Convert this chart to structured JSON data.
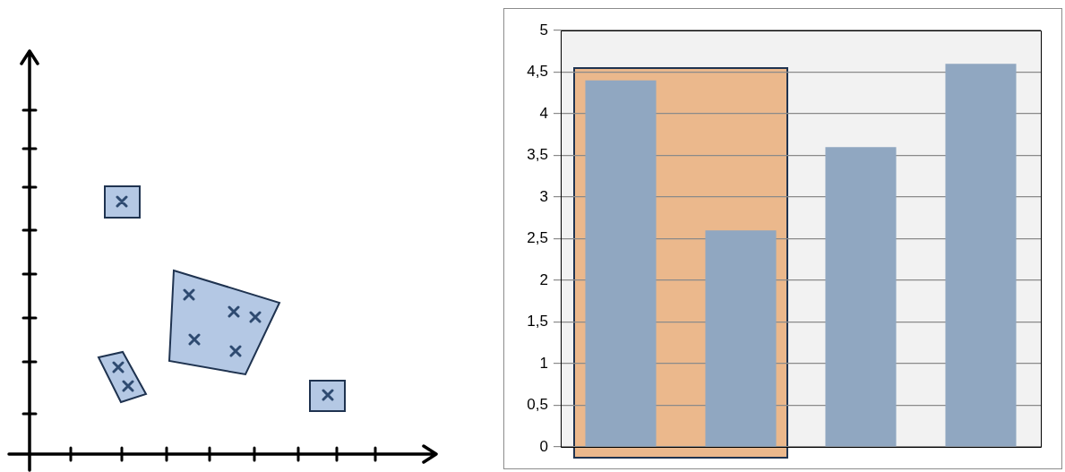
{
  "chart_data": {
    "type": "bar",
    "categories": [
      null,
      null,
      null,
      null
    ],
    "values": [
      4.4,
      2.6,
      3.6,
      4.6
    ],
    "color": "#90a7c1",
    "ylim": [
      0,
      5
    ],
    "yticks": [
      0,
      {
        "value": 0.5,
        "label": "0,5"
      },
      1,
      {
        "value": 1.5,
        "label": "1,5"
      },
      2,
      {
        "value": 2.5,
        "label": "2,5"
      },
      3,
      {
        "value": 3.5,
        "label": "3,5"
      },
      4,
      {
        "value": 4.5,
        "label": "4,5"
      },
      5
    ],
    "grid": "y",
    "legend": false
  }
}
